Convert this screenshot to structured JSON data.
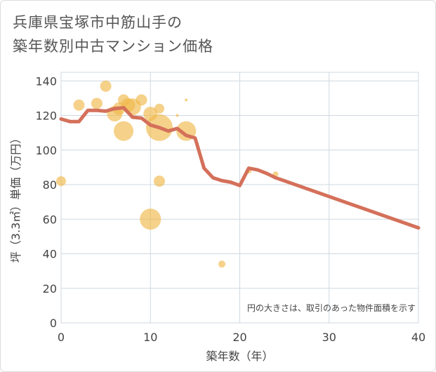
{
  "title_line1": "兵庫県宝塚市中筋山手の",
  "title_line2": "築年数別中古マンション価格",
  "note": "円の大きさは、取引のあった物件面積を示す",
  "colors": {
    "line": "#d4705a",
    "bubble": "#f0b94a",
    "grid": "#cfd8e0"
  },
  "chart_data": {
    "type": "scatter",
    "xlabel": "築年数（年）",
    "ylabel": "坪（3.3㎡）単価（万円）",
    "xlim": [
      0,
      40
    ],
    "ylim": [
      0,
      145
    ],
    "x_ticks": [
      0,
      10,
      20,
      30,
      40
    ],
    "y_ticks": [
      0,
      20,
      40,
      60,
      80,
      100,
      120,
      140
    ],
    "grid": true,
    "bubbles": [
      {
        "x": 0,
        "y": 82,
        "r": 7
      },
      {
        "x": 2,
        "y": 126,
        "r": 8
      },
      {
        "x": 4,
        "y": 127,
        "r": 8
      },
      {
        "x": 5,
        "y": 137,
        "r": 8
      },
      {
        "x": 6,
        "y": 121,
        "r": 11
      },
      {
        "x": 6.5,
        "y": 124,
        "r": 9
      },
      {
        "x": 7,
        "y": 129,
        "r": 8
      },
      {
        "x": 7,
        "y": 111,
        "r": 14
      },
      {
        "x": 7.5,
        "y": 126,
        "r": 10
      },
      {
        "x": 8,
        "y": 125,
        "r": 12
      },
      {
        "x": 9,
        "y": 129,
        "r": 8
      },
      {
        "x": 10,
        "y": 121,
        "r": 10
      },
      {
        "x": 10,
        "y": 60,
        "r": 15
      },
      {
        "x": 11,
        "y": 124,
        "r": 7
      },
      {
        "x": 11,
        "y": 113,
        "r": 19
      },
      {
        "x": 11,
        "y": 82,
        "r": 8
      },
      {
        "x": 13,
        "y": 120,
        "r": 2
      },
      {
        "x": 14,
        "y": 129,
        "r": 2
      },
      {
        "x": 14,
        "y": 111,
        "r": 14
      },
      {
        "x": 18,
        "y": 34,
        "r": 5
      },
      {
        "x": 21,
        "y": 88,
        "r": 4
      },
      {
        "x": 24,
        "y": 86,
        "r": 4
      }
    ],
    "series": [
      {
        "x": [
          0,
          1,
          2,
          3,
          4,
          5,
          6,
          7,
          8,
          9,
          10,
          11,
          12,
          13,
          14,
          15,
          16,
          17,
          18,
          19,
          20,
          21,
          22,
          23,
          24,
          40
        ],
        "values": [
          118,
          116.5,
          116.5,
          123,
          123,
          122.5,
          124,
          124.5,
          119,
          118.5,
          114.5,
          113,
          111,
          112.5,
          108.5,
          107,
          89.5,
          84,
          82.3,
          81.4,
          79.5,
          89.5,
          88.5,
          86.5,
          84,
          55
        ]
      }
    ]
  }
}
